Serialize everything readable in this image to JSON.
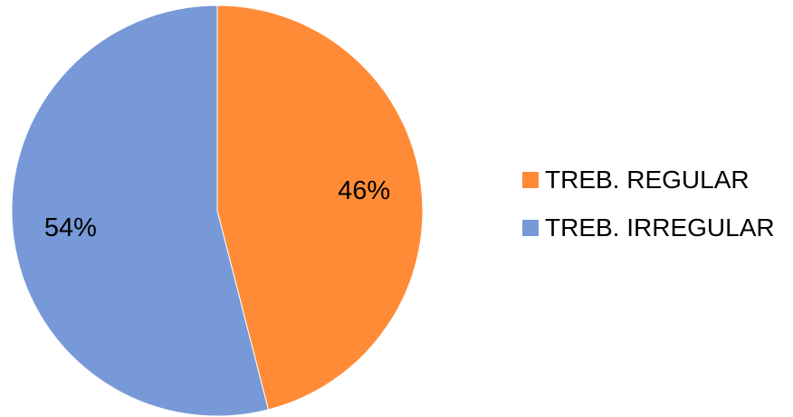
{
  "chart_data": {
    "type": "pie",
    "title": "",
    "start_angle_deg": 0,
    "direction": "clockwise",
    "legend_position": "right",
    "series": [
      {
        "name": "TREB. REGULAR",
        "value": 46,
        "label": "46%",
        "color": "#FF8B36"
      },
      {
        "name": "TREB. IRREGULAR",
        "value": 54,
        "label": "54%",
        "color": "#7799D8"
      }
    ]
  }
}
